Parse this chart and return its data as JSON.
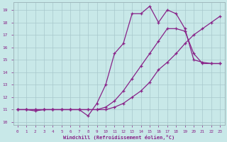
{
  "xlabel": "Windchill (Refroidissement éolien,°C)",
  "xlim": [
    -0.5,
    23.5
  ],
  "ylim": [
    9.8,
    19.6
  ],
  "xticks": [
    0,
    1,
    2,
    3,
    4,
    5,
    6,
    7,
    8,
    9,
    10,
    11,
    12,
    13,
    14,
    15,
    16,
    17,
    18,
    19,
    20,
    21,
    22,
    23
  ],
  "yticks": [
    10,
    11,
    12,
    13,
    14,
    15,
    16,
    17,
    18,
    19
  ],
  "bg_color": "#c8e8e8",
  "line_color": "#882288",
  "line1_y": [
    11.0,
    11.0,
    10.9,
    11.0,
    11.0,
    11.0,
    11.0,
    11.0,
    10.5,
    11.5,
    13.0,
    15.5,
    16.3,
    18.7,
    18.7,
    19.3,
    18.0,
    19.0,
    18.7,
    17.5,
    15.0,
    14.8,
    14.7,
    14.7
  ],
  "line2_y": [
    11.0,
    11.0,
    11.0,
    11.0,
    11.0,
    11.0,
    11.0,
    11.0,
    11.0,
    11.0,
    11.2,
    11.7,
    12.5,
    13.5,
    14.5,
    15.5,
    16.5,
    17.5,
    17.5,
    17.3,
    15.5,
    14.7,
    14.7,
    14.7
  ],
  "line3_y": [
    11.0,
    11.0,
    11.0,
    11.0,
    11.0,
    11.0,
    11.0,
    11.0,
    11.0,
    11.0,
    11.0,
    11.2,
    11.5,
    12.0,
    12.5,
    13.2,
    14.2,
    14.8,
    15.5,
    16.3,
    17.0,
    17.5,
    18.0,
    18.5
  ]
}
